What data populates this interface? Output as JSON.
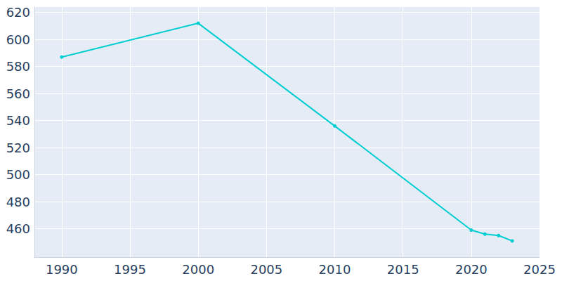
{
  "chart_data": {
    "type": "line",
    "x": [
      1990,
      2000,
      2010,
      2020,
      2021,
      2022,
      2023
    ],
    "values": [
      587,
      612,
      536,
      459,
      456,
      455,
      451
    ],
    "color": "#00CED1",
    "marker": "circle",
    "xlim": [
      1988,
      2025
    ],
    "xticks": [
      1990,
      1995,
      2000,
      2005,
      2010,
      2015,
      2020,
      2025
    ],
    "ylim": [
      439,
      624
    ],
    "yticks": [
      460,
      480,
      500,
      520,
      540,
      560,
      580,
      600,
      620
    ],
    "grid": true
  }
}
